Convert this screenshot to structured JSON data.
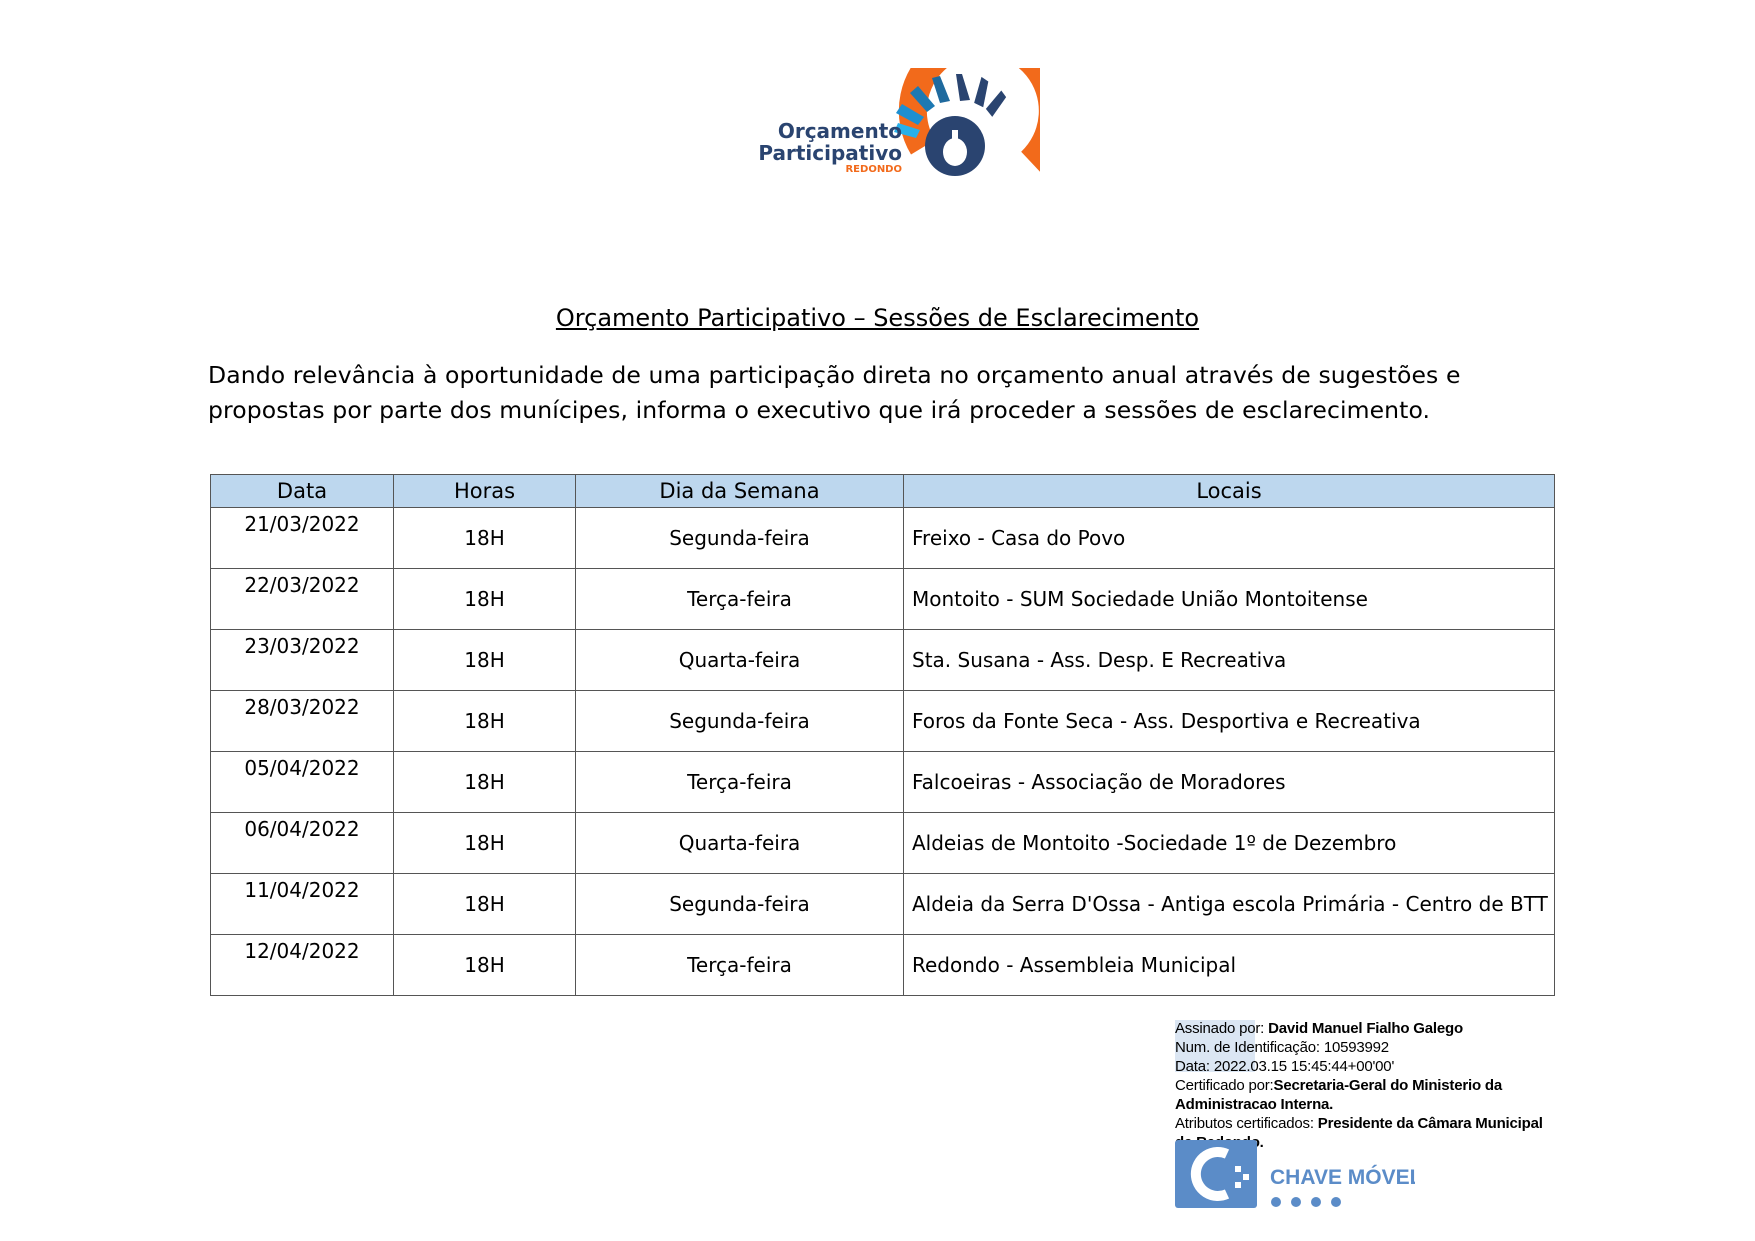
{
  "logo": {
    "line1": "Orçamento",
    "line2": "Participativo",
    "line3": "REDONDO",
    "colors": {
      "navy": "#2a4470",
      "orange": "#f26a1b",
      "blue": "#1d8fd1"
    }
  },
  "title": "Orçamento Participativo – Sessões de Esclarecimento",
  "intro": "Dando relevância à oportunidade de uma participação direta no orçamento anual através de sugestões e propostas por parte dos munícipes, informa o executivo que irá proceder a sessões de esclarecimento.",
  "table": {
    "headers": [
      "Data",
      "Horas",
      "Dia da Semana",
      "Locais"
    ],
    "rows": [
      [
        "21/03/2022",
        "18H",
        "Segunda-feira",
        "Freixo - Casa do Povo"
      ],
      [
        "22/03/2022",
        "18H",
        "Terça-feira",
        "Montoito - SUM Sociedade União Montoitense"
      ],
      [
        "23/03/2022",
        "18H",
        "Quarta-feira",
        "Sta. Susana - Ass. Desp. E Recreativa"
      ],
      [
        "28/03/2022",
        "18H",
        "Segunda-feira",
        "Foros da Fonte Seca - Ass. Desportiva e Recreativa"
      ],
      [
        "05/04/2022",
        "18H",
        "Terça-feira",
        "Falcoeiras - Associação de Moradores"
      ],
      [
        "06/04/2022",
        "18H",
        "Quarta-feira",
        "Aldeias de Montoito -Sociedade 1º de Dezembro"
      ],
      [
        "11/04/2022",
        "18H",
        "Segunda-feira",
        "Aldeia da Serra D'Ossa - Antiga escola Primária - Centro de BTT"
      ],
      [
        "12/04/2022",
        "18H",
        "Terça-feira",
        "Redondo - Assembleia Municipal"
      ]
    ],
    "header_bg": "#bdd7ee"
  },
  "signature": {
    "signed_by_label": "Assinado por:",
    "signed_by": "David Manuel Fialho Galego",
    "id_line": "Num. de Identificação: 10593992",
    "date_line": "Data: 2022.03.15 15:45:44+00'00'",
    "cert_label": "Certificado por:",
    "cert_by": "Secretaria-Geral do Ministerio da Administracao Interna.",
    "attr_label": "Atributos certificados:",
    "attr": "Presidente da Câmara Municipal de Redondo.",
    "badge": "CHAVE MÓVEL",
    "badge_color": "#5b8cc8"
  }
}
